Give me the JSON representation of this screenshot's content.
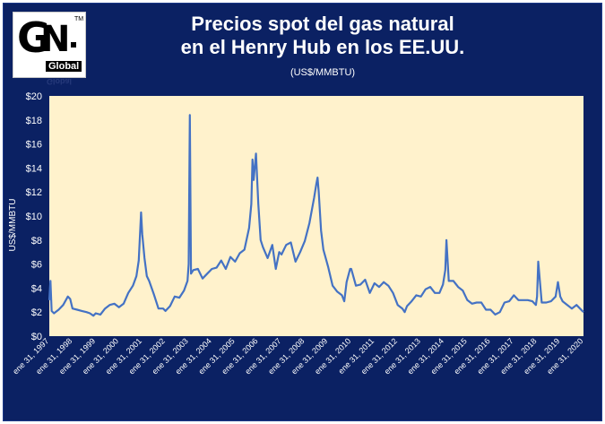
{
  "logo": {
    "mark_g": "G",
    "mark_n": "N",
    "tm": "TM",
    "sub": "Global"
  },
  "chart_data": {
    "type": "line",
    "title_line1": "Precios spot del gas natural",
    "title_line2": "en el Henry Hub en los EE.UU.",
    "subtitle": "(US$/MMBTU)",
    "xlabel": "",
    "ylabel": "US$/MMBTU",
    "ylim": [
      0,
      20
    ],
    "yticks": [
      "$0",
      "$2",
      "$4",
      "$6",
      "$8",
      "$10",
      "$12",
      "$14",
      "$16",
      "$18",
      "$20"
    ],
    "xlim": [
      1997.0,
      2020.0
    ],
    "xticks": [
      "ene 31, 1997",
      "ene 31, 1998",
      "ene 31, 1999",
      "ene 31, 2000",
      "ene 31, 2001",
      "ene 31, 2002",
      "ene 31, 2003",
      "ene 31, 2004",
      "ene 31, 2005",
      "ene 31, 2006",
      "ene 31, 2007",
      "ene 31, 2008",
      "ene 31, 2009",
      "ene 31, 2010",
      "ene 31, 2011",
      "ene 31, 2012",
      "ene 31, 2013",
      "ene 31, 2014",
      "ene 31, 2015",
      "ene 31, 2016",
      "ene 31, 2017",
      "ene 31, 2018",
      "ene 31, 2019",
      "ene 31, 2020"
    ],
    "grid": false,
    "plot_background": "#fff2cc",
    "line_color": "#4472c4",
    "series": [
      {
        "x": [
          1997.0,
          1997.05,
          1997.1,
          1997.2,
          1997.4,
          1997.6,
          1997.8,
          1997.9,
          1998.0,
          1998.2,
          1998.4,
          1998.6,
          1998.75,
          1998.9,
          1999.0,
          1999.2,
          1999.4,
          1999.6,
          1999.8,
          2000.0,
          2000.2,
          2000.4,
          2000.6,
          2000.75,
          2000.85,
          2000.95,
          2001.0,
          2001.1,
          2001.2,
          2001.3,
          2001.5,
          2001.7,
          2001.9,
          2002.0,
          2002.2,
          2002.4,
          2002.6,
          2002.8,
          2002.95,
          2003.0,
          2003.05,
          2003.1,
          2003.2,
          2003.4,
          2003.6,
          2003.8,
          2004.0,
          2004.2,
          2004.4,
          2004.6,
          2004.8,
          2005.0,
          2005.2,
          2005.4,
          2005.6,
          2005.7,
          2005.75,
          2005.8,
          2005.9,
          2006.0,
          2006.1,
          2006.2,
          2006.4,
          2006.6,
          2006.75,
          2006.9,
          2007.0,
          2007.2,
          2007.4,
          2007.6,
          2007.8,
          2008.0,
          2008.2,
          2008.4,
          2008.5,
          2008.55,
          2008.6,
          2008.7,
          2008.8,
          2009.0,
          2009.2,
          2009.4,
          2009.6,
          2009.7,
          2009.8,
          2009.95,
          2010.0,
          2010.2,
          2010.4,
          2010.6,
          2010.8,
          2011.0,
          2011.2,
          2011.4,
          2011.6,
          2011.8,
          2012.0,
          2012.2,
          2012.3,
          2012.4,
          2012.6,
          2012.8,
          2013.0,
          2013.2,
          2013.4,
          2013.6,
          2013.8,
          2013.95,
          2014.05,
          2014.1,
          2014.2,
          2014.4,
          2014.6,
          2014.8,
          2015.0,
          2015.2,
          2015.4,
          2015.6,
          2015.8,
          2016.0,
          2016.2,
          2016.4,
          2016.6,
          2016.8,
          2017.0,
          2017.2,
          2017.4,
          2017.6,
          2017.8,
          2017.95,
          2018.0,
          2018.05,
          2018.2,
          2018.4,
          2018.6,
          2018.8,
          2018.9,
          2019.0,
          2019.1,
          2019.3,
          2019.5,
          2019.7,
          2019.85,
          2020.0
        ],
        "y": [
          3.0,
          4.6,
          2.1,
          1.9,
          2.2,
          2.6,
          3.3,
          3.1,
          2.3,
          2.2,
          2.1,
          2.0,
          1.9,
          1.7,
          1.9,
          1.8,
          2.3,
          2.6,
          2.7,
          2.4,
          2.7,
          3.6,
          4.2,
          5.0,
          6.3,
          10.3,
          8.5,
          6.5,
          5.0,
          4.6,
          3.5,
          2.3,
          2.3,
          2.1,
          2.5,
          3.3,
          3.2,
          3.8,
          4.6,
          6.0,
          18.4,
          5.2,
          5.5,
          5.6,
          4.8,
          5.2,
          5.6,
          5.7,
          6.3,
          5.6,
          6.6,
          6.2,
          6.9,
          7.2,
          9.0,
          11.0,
          14.7,
          13.0,
          15.2,
          11.0,
          8.0,
          7.4,
          6.5,
          7.6,
          5.6,
          7.0,
          6.8,
          7.6,
          7.8,
          6.2,
          7.0,
          7.9,
          9.4,
          11.5,
          12.7,
          13.2,
          12.0,
          8.8,
          7.2,
          5.8,
          4.2,
          3.7,
          3.4,
          2.9,
          4.5,
          5.6,
          5.6,
          4.2,
          4.3,
          4.7,
          3.6,
          4.4,
          4.1,
          4.5,
          4.2,
          3.6,
          2.6,
          2.3,
          2.0,
          2.5,
          2.9,
          3.4,
          3.3,
          3.9,
          4.1,
          3.6,
          3.6,
          4.3,
          5.5,
          8.0,
          4.6,
          4.6,
          4.1,
          3.8,
          3.0,
          2.7,
          2.8,
          2.8,
          2.2,
          2.2,
          1.8,
          2.0,
          2.8,
          2.9,
          3.4,
          3.0,
          3.0,
          3.0,
          2.9,
          2.6,
          3.3,
          6.2,
          2.8,
          2.8,
          2.9,
          3.3,
          4.5,
          3.3,
          2.9,
          2.6,
          2.3,
          2.6,
          2.3,
          2.0
        ]
      }
    ]
  }
}
